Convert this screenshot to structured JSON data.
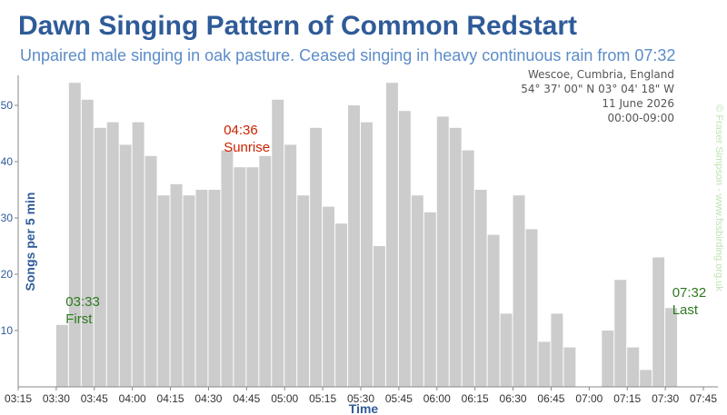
{
  "title": "Dawn Singing Pattern of Common Redstart",
  "subtitle": "Unpaired male singing in oak pasture. Ceased singing in heavy continuous rain from 07:32",
  "info": {
    "location": "Wescoe, Cumbria, England",
    "coords": "54° 37' 00\" N  03° 04' 18\" W",
    "date": "11 June 2026",
    "time_range": "00:00-09:00"
  },
  "credit": "© Fraser Simpson  -  www.fssbirding.org.uk",
  "colors": {
    "bar": "#cccccc",
    "title": "#2f5b98",
    "subtitle": "#5b8cc8",
    "sunrise": "#cc2200",
    "first_last": "#2d7a1f",
    "credit": "#bfe3b4"
  },
  "chart_data": {
    "type": "bar",
    "title": "Dawn Singing Pattern of Common Redstart",
    "xlabel": "Time",
    "ylabel": "Songs per 5 min",
    "ylim": [
      0,
      55
    ],
    "y_ticks": [
      10,
      20,
      30,
      40,
      50
    ],
    "x_ticks": [
      "03:15",
      "03:30",
      "03:45",
      "04:00",
      "04:15",
      "04:30",
      "04:45",
      "05:00",
      "05:15",
      "05:30",
      "05:45",
      "06:00",
      "06:15",
      "06:30",
      "06:45",
      "07:00",
      "07:15",
      "07:30",
      "07:45"
    ],
    "bin_minutes": 5,
    "first_bin_start": "03:30",
    "values": [
      11,
      54,
      51,
      46,
      47,
      43,
      47,
      41,
      34,
      36,
      34,
      35,
      35,
      42,
      39,
      39,
      41,
      51,
      43,
      34,
      46,
      32,
      29,
      50,
      47,
      25,
      54,
      49,
      34,
      31,
      48,
      46,
      42,
      35,
      27,
      13,
      34,
      28,
      8,
      13,
      7,
      0,
      0,
      10,
      19,
      7,
      3,
      23,
      14
    ],
    "annotations": [
      {
        "time": "03:33",
        "label": "First"
      },
      {
        "time": "04:36",
        "label": "Sunrise"
      },
      {
        "time": "07:32",
        "label": "Last"
      }
    ],
    "grid": false
  }
}
